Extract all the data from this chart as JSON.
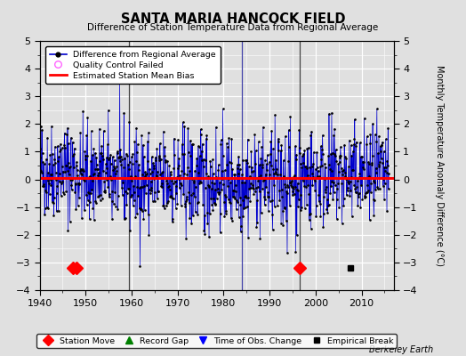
{
  "title": "SANTA MARIA HANCOCK FIELD",
  "subtitle": "Difference of Station Temperature Data from Regional Average",
  "ylabel": "Monthly Temperature Anomaly Difference (°C)",
  "xlabel_label": "Berkeley Earth",
  "xlim": [
    1940,
    2017
  ],
  "ylim": [
    -4,
    5
  ],
  "yticks": [
    -4,
    -3,
    -2,
    -1,
    0,
    1,
    2,
    3,
    4,
    5
  ],
  "xticks": [
    1940,
    1950,
    1960,
    1970,
    1980,
    1990,
    2000,
    2010
  ],
  "mean_bias": 0.05,
  "station_moves": [
    1947.3,
    1948.0,
    1996.5
  ],
  "empirical_breaks": [
    2007.5
  ],
  "vertical_lines_dark": [
    1959.5,
    1996.5
  ],
  "vertical_lines_blue": [
    1984.0
  ],
  "bg_color": "#e0e0e0",
  "plot_bg_color": "#e0e0e0",
  "line_color": "#0000cc",
  "fill_color": "#8888dd",
  "bias_line_color": "#ff0000",
  "seed": 42
}
